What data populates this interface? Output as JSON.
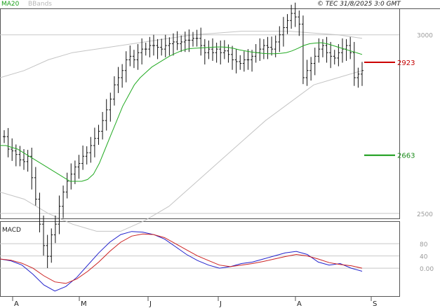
{
  "header": {
    "legend_ma": "MA20",
    "legend_bb": "BBands",
    "copyright": "© TEC 31/8/2025 3:0 GMT"
  },
  "colors": {
    "ma": "#22aa22",
    "bbands": "#c4c4c4",
    "candles": "#111111",
    "macd": "#2222cc",
    "signal": "#cc2222",
    "resistance": "#cc0000",
    "support": "#119911",
    "grid": "#c8c8c8"
  },
  "chart_data": [
    {
      "type": "ohlc",
      "x_labels": [
        "A",
        "M",
        "J",
        "J",
        "A",
        "S"
      ],
      "y_ticks": [
        {
          "label": "3000",
          "value": 3000
        },
        {
          "label": "2500",
          "value": 2500
        }
      ],
      "ylim": [
        2490,
        3070
      ],
      "legend": [
        "MA20",
        "BBands"
      ],
      "levels": [
        {
          "label": "2923",
          "value": 2923,
          "kind": "resistance"
        },
        {
          "label": "2663",
          "value": 2663,
          "kind": "support"
        }
      ],
      "series": {
        "close": [
          2715,
          2680,
          2675,
          2665,
          2650,
          2645,
          2660,
          2600,
          2540,
          2470,
          2410,
          2380,
          2440,
          2470,
          2520,
          2560,
          2590,
          2610,
          2630,
          2640,
          2660,
          2670,
          2690,
          2710,
          2730,
          2760,
          2790,
          2820,
          2860,
          2880,
          2900,
          2930,
          2940,
          2930,
          2950,
          2960,
          2960,
          2970,
          2970,
          2965,
          2960,
          2970,
          2975,
          2980,
          2975,
          2980,
          2985,
          2985,
          2990,
          2990,
          2970,
          2950,
          2960,
          2950,
          2960,
          2950,
          2955,
          2945,
          2930,
          2925,
          2920,
          2930,
          2930,
          2940,
          2950,
          2960,
          2970,
          2965,
          2960,
          2980,
          3000,
          3020,
          3040,
          3060,
          3050,
          3030,
          2880,
          2900,
          2920,
          2940,
          2960,
          2970,
          2950,
          2940,
          2935,
          2950,
          2960,
          2970,
          2950,
          2880,
          2890,
          2900
        ],
        "ma20": [
          2690,
          2690,
          2685,
          2680,
          2670,
          2660,
          2650,
          2640,
          2630,
          2620,
          2610,
          2600,
          2590,
          2590,
          2590,
          2595,
          2610,
          2640,
          2680,
          2720,
          2760,
          2800,
          2830,
          2860,
          2880,
          2895,
          2910,
          2920,
          2930,
          2940,
          2948,
          2955,
          2960,
          2962,
          2963,
          2964,
          2965,
          2966,
          2966,
          2965,
          2962,
          2958,
          2955,
          2952,
          2950,
          2948,
          2947,
          2947,
          2948,
          2950,
          2955,
          2962,
          2970,
          2975,
          2977,
          2978,
          2975,
          2970,
          2965,
          2960,
          2955,
          2950,
          2945
        ],
        "bb_upper": [
          2880,
          2900,
          2930,
          2950,
          2960,
          2970,
          2980,
          2990,
          3000,
          3005,
          3010,
          3010,
          3010,
          3005,
          3000,
          2990
        ],
        "bb_lower": [
          2560,
          2540,
          2500,
          2470,
          2450,
          2450,
          2480,
          2520,
          2580,
          2640,
          2700,
          2760,
          2810,
          2860,
          2880,
          2900
        ]
      }
    },
    {
      "type": "line",
      "title": "MACD",
      "y_ticks": [
        {
          "label": "80",
          "value": 80
        },
        {
          "label": "40",
          "value": 40
        },
        {
          "label": "0.00",
          "value": 0
        }
      ],
      "ylim": [
        -80,
        140
      ],
      "series": [
        {
          "values": [
            30,
            24,
            10,
            -20,
            -55,
            -75,
            -60,
            -30,
            10,
            50,
            85,
            110,
            120,
            118,
            110,
            95,
            70,
            45,
            25,
            10,
            0,
            5,
            15,
            20,
            30,
            40,
            50,
            55,
            45,
            20,
            10,
            15,
            0,
            -10
          ]
        },
        {
          "values": [
            30,
            26,
            16,
            0,
            -25,
            -45,
            -50,
            -35,
            -10,
            20,
            55,
            85,
            105,
            112,
            110,
            100,
            80,
            60,
            40,
            25,
            10,
            5,
            10,
            15,
            22,
            30,
            38,
            45,
            40,
            30,
            18,
            12,
            8,
            0
          ]
        }
      ]
    }
  ]
}
